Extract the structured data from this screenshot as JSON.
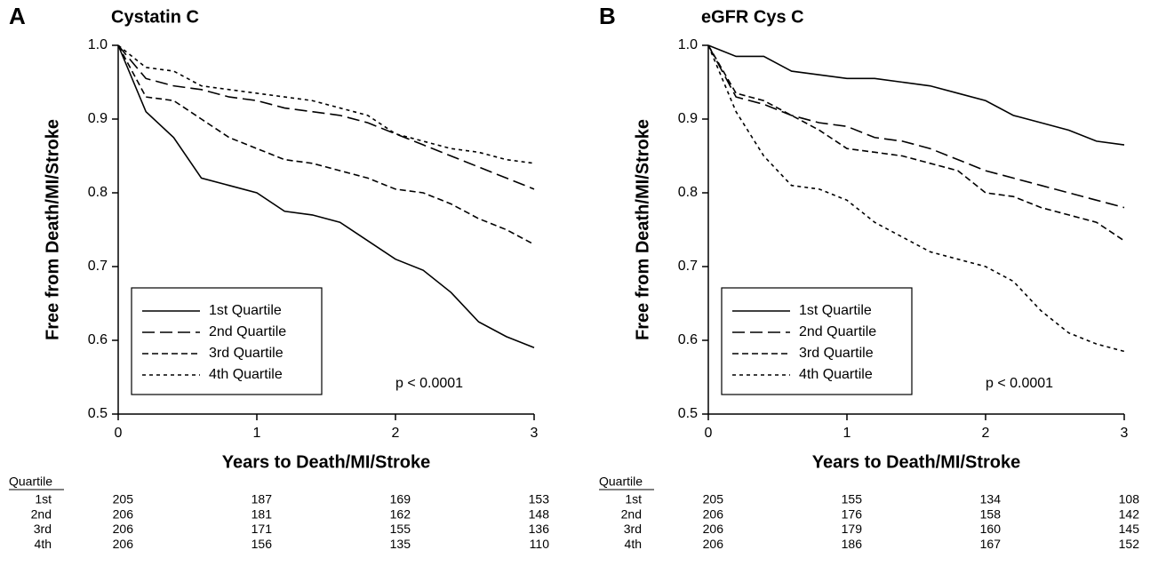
{
  "chart_data": [
    {
      "type": "line",
      "panel": "A",
      "title": "Cystatin C",
      "xlabel": "Years to Death/MI/Stroke",
      "ylabel": "Free from Death/MI/Stroke",
      "x": [
        0,
        0.2,
        0.4,
        0.6,
        0.8,
        1.0,
        1.2,
        1.4,
        1.6,
        1.8,
        2.0,
        2.2,
        2.4,
        2.6,
        2.8,
        3.0
      ],
      "series": [
        {
          "name": "1st Quartile",
          "color": "#000",
          "dash": "none",
          "values": [
            1.0,
            0.91,
            0.875,
            0.82,
            0.81,
            0.8,
            0.775,
            0.77,
            0.76,
            0.735,
            0.71,
            0.695,
            0.665,
            0.625,
            0.605,
            0.59
          ]
        },
        {
          "name": "2nd Quartile",
          "color": "#000",
          "dash": "14,6",
          "values": [
            1.0,
            0.955,
            0.945,
            0.94,
            0.93,
            0.925,
            0.915,
            0.91,
            0.905,
            0.895,
            0.88,
            0.865,
            0.85,
            0.835,
            0.82,
            0.805
          ]
        },
        {
          "name": "3rd Quartile",
          "color": "#000",
          "dash": "7,4",
          "values": [
            1.0,
            0.93,
            0.925,
            0.9,
            0.875,
            0.86,
            0.845,
            0.84,
            0.83,
            0.82,
            0.805,
            0.8,
            0.785,
            0.765,
            0.75,
            0.73
          ]
        },
        {
          "name": "4th Quartile",
          "color": "#000",
          "dash": "4,4",
          "values": [
            1.0,
            0.97,
            0.965,
            0.945,
            0.94,
            0.935,
            0.93,
            0.925,
            0.915,
            0.905,
            0.88,
            0.87,
            0.86,
            0.855,
            0.845,
            0.84
          ]
        }
      ],
      "xlim": [
        0,
        3
      ],
      "xticks": [
        0,
        1,
        2,
        3
      ],
      "ylim": [
        0.5,
        1.0
      ],
      "yticks": [
        0.5,
        0.6,
        0.7,
        0.8,
        0.9,
        {
          "value": 1.0,
          "label": "1.0"
        }
      ],
      "legend": "lower left",
      "annotation": "p < 0.0001",
      "risk_table": {
        "header": "Quartile",
        "rows": [
          {
            "label": "1st",
            "values": [
              205,
              187,
              169,
              153
            ]
          },
          {
            "label": "2nd",
            "values": [
              206,
              181,
              162,
              148
            ]
          },
          {
            "label": "3rd",
            "values": [
              206,
              171,
              155,
              136
            ]
          },
          {
            "label": "4th",
            "values": [
              206,
              156,
              135,
              110
            ]
          }
        ]
      }
    },
    {
      "type": "line",
      "panel": "B",
      "title": "eGFR Cys C",
      "xlabel": "Years to Death/MI/Stroke",
      "ylabel": "Free from Death/MI/Stroke",
      "x": [
        0,
        0.2,
        0.4,
        0.6,
        0.8,
        1.0,
        1.2,
        1.4,
        1.6,
        1.8,
        2.0,
        2.2,
        2.4,
        2.6,
        2.8,
        3.0
      ],
      "series": [
        {
          "name": "1st Quartile",
          "color": "#000",
          "dash": "none",
          "values": [
            1.0,
            0.985,
            0.985,
            0.965,
            0.96,
            0.955,
            0.955,
            0.95,
            0.945,
            0.935,
            0.925,
            0.905,
            0.895,
            0.885,
            0.87,
            0.865
          ]
        },
        {
          "name": "2nd Quartile",
          "color": "#000",
          "dash": "14,6",
          "values": [
            1.0,
            0.93,
            0.92,
            0.905,
            0.895,
            0.89,
            0.875,
            0.87,
            0.86,
            0.845,
            0.83,
            0.82,
            0.81,
            0.8,
            0.79,
            0.78
          ]
        },
        {
          "name": "3rd Quartile",
          "color": "#000",
          "dash": "7,4",
          "values": [
            1.0,
            0.935,
            0.925,
            0.905,
            0.885,
            0.86,
            0.855,
            0.85,
            0.84,
            0.83,
            0.8,
            0.795,
            0.78,
            0.77,
            0.76,
            0.735
          ]
        },
        {
          "name": "4th Quartile",
          "color": "#000",
          "dash": "4,4",
          "values": [
            1.0,
            0.91,
            0.85,
            0.81,
            0.805,
            0.79,
            0.76,
            0.74,
            0.72,
            0.71,
            0.7,
            0.68,
            0.64,
            0.61,
            0.595,
            0.585
          ]
        }
      ],
      "xlim": [
        0,
        3
      ],
      "xticks": [
        0,
        1,
        2,
        3
      ],
      "ylim": [
        0.5,
        1.0
      ],
      "yticks": [
        0.5,
        0.6,
        0.7,
        0.8,
        0.9,
        {
          "value": 1.0,
          "label": "1.0"
        }
      ],
      "legend": "lower left",
      "annotation": "p < 0.0001",
      "risk_table": {
        "header": "Quartile",
        "rows": [
          {
            "label": "1st",
            "values": [
              205,
              155,
              134,
              108
            ]
          },
          {
            "label": "2nd",
            "values": [
              206,
              176,
              158,
              142
            ]
          },
          {
            "label": "3rd",
            "values": [
              206,
              179,
              160,
              145
            ]
          },
          {
            "label": "4th",
            "values": [
              206,
              186,
              167,
              152
            ]
          }
        ]
      }
    }
  ]
}
